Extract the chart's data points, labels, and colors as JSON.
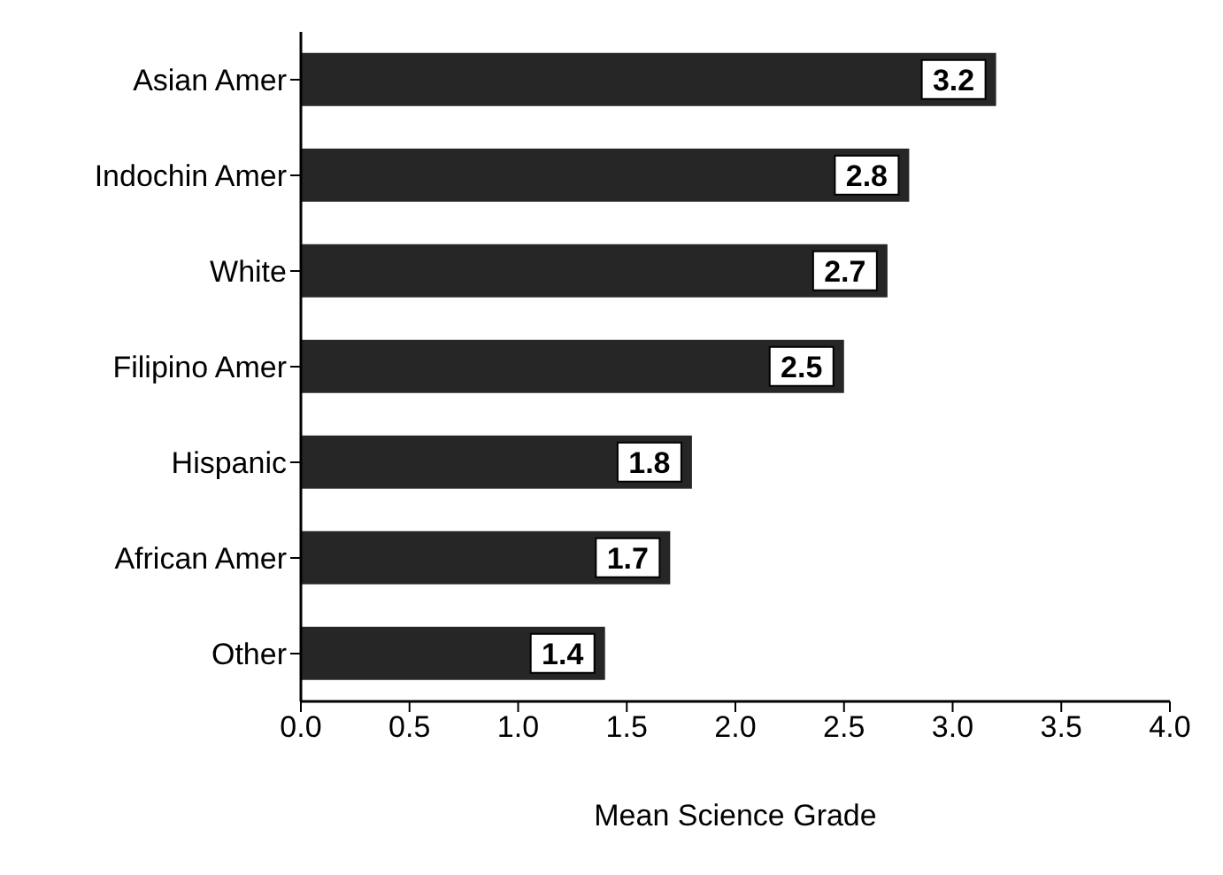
{
  "chart_data": {
    "type": "bar",
    "orientation": "horizontal",
    "xlabel": "Mean Science Grade",
    "categories": [
      "Asian Amer",
      "Indochin Amer",
      "White",
      "Filipino Amer",
      "Hispanic",
      "African Amer",
      "Other"
    ],
    "values": [
      3.2,
      2.8,
      2.7,
      2.5,
      1.8,
      1.7,
      1.4
    ],
    "color": "#262626",
    "xlim": [
      0,
      4
    ],
    "xticks": [
      {
        "value": 0,
        "label": "0.0"
      },
      {
        "value": 0.5,
        "label": "0.5"
      },
      {
        "value": 1,
        "label": "1.0"
      },
      {
        "value": 1.5,
        "label": "1.5"
      },
      {
        "value": 2,
        "label": "2.0"
      },
      {
        "value": 2.5,
        "label": "2.5"
      },
      {
        "value": 3,
        "label": "3.0"
      },
      {
        "value": 3.5,
        "label": "3.5"
      },
      {
        "value": 4,
        "label": "4.0"
      }
    ],
    "data_labels": true,
    "grid": false
  }
}
